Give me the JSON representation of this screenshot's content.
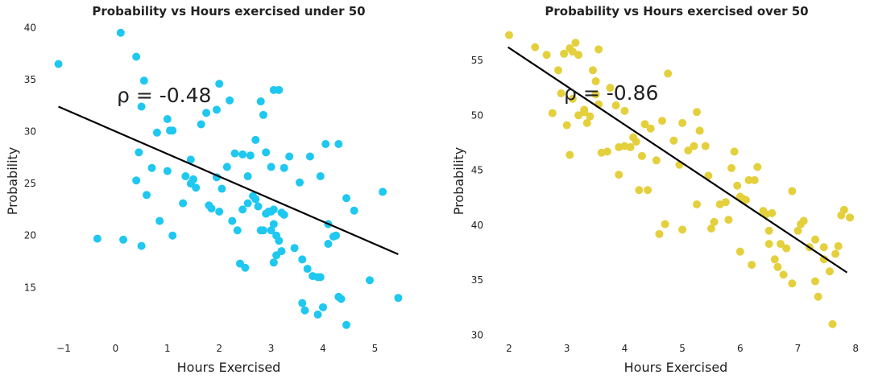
{
  "chart_data": [
    {
      "type": "scatter",
      "title": "Probability vs Hours exercised under 50",
      "xlabel": "Hours Exercised",
      "ylabel": "Probability",
      "xlim": [
        -1.2,
        5.6
      ],
      "ylim": [
        10.5,
        41
      ],
      "xticks": [
        -1,
        0,
        1,
        2,
        3,
        4,
        5
      ],
      "yticks": [
        15,
        20,
        25,
        30,
        35,
        40
      ],
      "grid": false,
      "color": "#1ec8f0",
      "correlation_label": "ρ = -0.48",
      "fit_line": {
        "x": [
          -1.1,
          5.45
        ],
        "y": [
          32.4,
          18.2
        ]
      },
      "points": {
        "x": [
          -1.1,
          0.1,
          0.4,
          0.55,
          0.5,
          0.45,
          1.05,
          1.1,
          1.0,
          0.8,
          0.7,
          0.6,
          1.0,
          0.85,
          1.1,
          0.4,
          0.5,
          -0.35,
          0.15,
          1.3,
          1.5,
          1.45,
          1.55,
          1.65,
          1.75,
          1.95,
          2.0,
          2.2,
          2.3,
          2.45,
          2.55,
          2.6,
          2.7,
          2.8,
          2.85,
          2.9,
          3.0,
          3.05,
          3.15,
          3.05,
          3.25,
          3.35,
          3.55,
          3.75,
          3.95,
          4.05,
          4.3,
          4.45,
          4.6,
          4.25,
          5.15,
          1.35,
          1.45,
          1.85,
          1.95,
          2.05,
          2.15,
          2.25,
          2.35,
          2.45,
          2.55,
          2.65,
          2.7,
          2.75,
          2.8,
          2.85,
          2.9,
          3.0,
          3.05,
          3.1,
          3.15,
          3.2,
          2.95,
          3.1,
          3.2,
          3.0,
          3.05,
          3.25,
          3.45,
          3.6,
          3.7,
          3.8,
          3.9,
          3.95,
          4.1,
          4.2,
          4.3,
          4.0,
          4.45,
          4.9,
          5.45,
          4.35,
          4.1,
          2.4,
          2.5,
          1.8,
          2.0,
          3.6,
          3.65,
          3.9
        ],
        "y": [
          36.5,
          39.5,
          37.2,
          34.9,
          32.4,
          28.0,
          30.1,
          30.1,
          31.2,
          29.9,
          26.5,
          23.9,
          26.2,
          21.4,
          20.0,
          25.3,
          19.0,
          19.7,
          19.6,
          23.1,
          25.4,
          27.3,
          24.6,
          30.7,
          31.8,
          32.1,
          34.6,
          33.0,
          27.9,
          27.8,
          25.7,
          27.7,
          29.2,
          32.9,
          31.6,
          28.0,
          26.6,
          34.0,
          34.0,
          22.5,
          26.5,
          27.6,
          25.1,
          27.6,
          25.7,
          28.8,
          28.8,
          23.6,
          22.4,
          20.0,
          24.2,
          25.7,
          25.0,
          22.6,
          25.6,
          24.5,
          26.6,
          21.4,
          20.5,
          22.5,
          23.1,
          23.8,
          23.5,
          22.8,
          20.5,
          20.5,
          22.1,
          20.5,
          21.1,
          20.0,
          19.5,
          22.2,
          22.3,
          18.1,
          18.5,
          22.3,
          17.4,
          22.0,
          18.8,
          17.7,
          16.8,
          16.1,
          16.0,
          16.0,
          21.1,
          19.9,
          14.1,
          13.1,
          11.4,
          15.7,
          14.0,
          13.9,
          19.2,
          17.3,
          16.9,
          22.9,
          22.3,
          13.5,
          12.8,
          12.4
        ]
      }
    },
    {
      "type": "scatter",
      "title": "Probability vs Hours exercised over 50",
      "xlabel": "Hours Exercised",
      "ylabel": "Probability",
      "xlim": [
        1.9,
        8.1
      ],
      "ylim": [
        29.7,
        58
      ],
      "xticks": [
        2,
        3,
        4,
        5,
        6,
        7,
        8
      ],
      "yticks": [
        30,
        35,
        40,
        45,
        50,
        55
      ],
      "grid": false,
      "color": "#e4d03c",
      "correlation_label": "ρ = -0.86",
      "fit_line": {
        "x": [
          1.98,
          7.85
        ],
        "y": [
          56.2,
          35.7
        ]
      },
      "points": {
        "x": [
          2.0,
          2.45,
          2.65,
          2.85,
          2.95,
          3.05,
          3.1,
          3.15,
          3.2,
          3.3,
          3.45,
          3.5,
          3.55,
          2.75,
          2.9,
          3.0,
          3.1,
          3.2,
          3.3,
          3.4,
          3.5,
          3.55,
          3.6,
          3.7,
          3.85,
          3.9,
          4.0,
          4.1,
          4.2,
          4.3,
          4.4,
          4.55,
          4.65,
          4.75,
          4.85,
          4.95,
          5.0,
          5.1,
          5.2,
          5.25,
          5.3,
          5.4,
          5.45,
          5.55,
          5.65,
          5.75,
          5.85,
          5.9,
          5.95,
          6.0,
          6.05,
          6.1,
          6.15,
          6.25,
          6.3,
          6.4,
          6.45,
          6.5,
          6.55,
          6.6,
          6.65,
          6.7,
          6.75,
          6.9,
          7.0,
          7.05,
          7.1,
          7.2,
          7.3,
          7.35,
          7.45,
          7.55,
          7.65,
          7.7,
          7.8,
          7.9,
          7.75,
          7.6,
          7.45,
          6.8,
          6.5,
          6.0,
          5.5,
          5.0,
          4.6,
          4.25,
          3.9,
          4.0,
          4.15,
          4.35,
          4.7,
          5.25,
          5.8,
          6.2,
          6.9,
          7.3,
          3.05,
          3.35,
          3.75,
          4.45
        ],
        "y": [
          57.3,
          56.2,
          55.5,
          54.1,
          55.6,
          56.1,
          55.8,
          56.6,
          55.5,
          50.3,
          54.1,
          53.1,
          56.0,
          50.2,
          52.0,
          49.1,
          51.5,
          50.0,
          50.5,
          49.9,
          51.9,
          51.0,
          46.6,
          46.7,
          50.9,
          47.1,
          47.2,
          47.1,
          47.6,
          46.3,
          43.2,
          45.9,
          49.5,
          53.8,
          47.7,
          45.5,
          49.3,
          46.8,
          47.2,
          50.3,
          48.6,
          47.2,
          44.5,
          40.3,
          41.9,
          42.1,
          45.2,
          46.7,
          43.6,
          42.6,
          42.4,
          42.3,
          44.1,
          44.1,
          45.3,
          41.3,
          41.0,
          39.5,
          41.1,
          36.9,
          36.2,
          38.3,
          35.5,
          43.1,
          39.5,
          40.1,
          40.4,
          38.0,
          34.9,
          33.5,
          38.0,
          35.8,
          37.4,
          38.1,
          41.4,
          40.7,
          40.9,
          31.0,
          36.9,
          37.9,
          38.3,
          37.6,
          39.7,
          39.6,
          39.2,
          43.2,
          44.6,
          50.4,
          48.0,
          49.2,
          40.1,
          41.9,
          40.5,
          36.4,
          34.7,
          38.7,
          46.4,
          49.3,
          52.5,
          48.8
        ]
      }
    }
  ]
}
